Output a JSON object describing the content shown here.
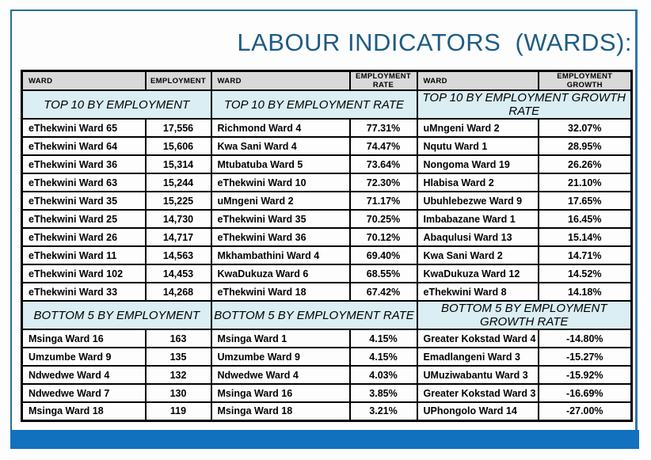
{
  "title": "LABOUR INDICATORS  (WARDS):",
  "table": {
    "col_headers": [
      "WARD",
      "EMPLOYMENT",
      "WARD",
      "EMPLOYMENT RATE",
      "WARD",
      "EMPLOYMENT GROWTH"
    ],
    "sections": [
      {
        "headers": [
          "TOP 10 BY EMPLOYMENT",
          "TOP 10 BY EMPLOYMENT RATE",
          "TOP 10 BY EMPLOYMENT GROWTH RATE"
        ],
        "rows": [
          [
            "eThekwini Ward 65",
            "17,556",
            "Richmond Ward 4",
            "77.31%",
            "uMngeni Ward 2",
            "32.07%"
          ],
          [
            "eThekwini Ward 64",
            "15,606",
            "Kwa Sani Ward 4",
            "74.47%",
            "Nqutu Ward 1",
            "28.95%"
          ],
          [
            "eThekwini Ward 36",
            "15,314",
            "Mtubatuba Ward 5",
            "73.64%",
            "Nongoma Ward 19",
            "26.26%"
          ],
          [
            "eThekwini Ward 63",
            "15,244",
            "eThekwini Ward 10",
            "72.30%",
            "Hlabisa Ward 2",
            "21.10%"
          ],
          [
            "eThekwini Ward 35",
            "15,225",
            "uMngeni Ward 2",
            "71.17%",
            "Ubuhlebezwe Ward 9",
            "17.65%"
          ],
          [
            "eThekwini Ward 25",
            "14,730",
            "eThekwini Ward 35",
            "70.25%",
            "Imbabazane Ward 1",
            "16.45%"
          ],
          [
            "eThekwini Ward 26",
            "14,717",
            "eThekwini Ward 36",
            "70.12%",
            "Abaqulusi Ward 13",
            "15.14%"
          ],
          [
            "eThekwini Ward 11",
            "14,563",
            "Mkhambathini Ward 4",
            "69.40%",
            "Kwa Sani Ward 2",
            "14.71%"
          ],
          [
            "eThekwini Ward 102",
            "14,453",
            "KwaDukuza Ward 6",
            "68.55%",
            "KwaDukuza Ward 12",
            "14.52%"
          ],
          [
            "eThekwini Ward 33",
            "14,268",
            "eThekwini Ward 18",
            "67.42%",
            "eThekwini Ward 8",
            "14.18%"
          ]
        ]
      },
      {
        "headers": [
          "BOTTOM 5 BY EMPLOYMENT",
          "BOTTOM 5 BY EMPLOYMENT RATE",
          "BOTTOM 5 BY EMPLOYMENT GROWTH RATE"
        ],
        "rows": [
          [
            "Msinga Ward 16",
            "163",
            "Msinga Ward 1",
            "4.15%",
            "Greater Kokstad Ward 4",
            "-14.80%"
          ],
          [
            "Umzumbe Ward 9",
            "135",
            "Umzumbe Ward 9",
            "4.15%",
            "Emadlangeni Ward 3",
            "-15.27%"
          ],
          [
            "Ndwedwe Ward 4",
            "132",
            "Ndwedwe Ward 4",
            "4.03%",
            "UMuziwabantu Ward 3",
            "-15.92%"
          ],
          [
            "Ndwedwe Ward 7",
            "130",
            "Msinga Ward 16",
            "3.85%",
            "Greater Kokstad Ward 3",
            "-16.69%"
          ],
          [
            "Msinga Ward 18",
            "119",
            "Msinga Ward 18",
            "3.21%",
            "UPhongolo Ward 14",
            "-27.00%"
          ]
        ]
      }
    ]
  },
  "colors": {
    "title-color": "#1f5c83",
    "bar-blue": "#1271bf",
    "frame-teal": "#25708e",
    "frame-blue": "#2e75b6",
    "head-bg": "#d9d9d9",
    "section-bg": "#daeef3"
  }
}
